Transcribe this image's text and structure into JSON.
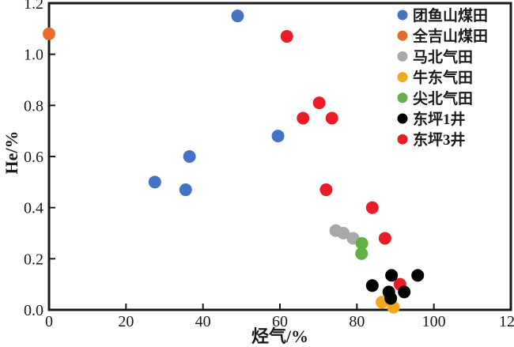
{
  "figure": {
    "background": "#ffffff",
    "frame_color": "#1a1a1a"
  },
  "chart_data": {
    "type": "scatter",
    "title": "",
    "xlabel": "烃气/%",
    "ylabel": "He/%",
    "xlim": [
      0,
      120
    ],
    "ylim": [
      0,
      1.2
    ],
    "x_tick_labels": [
      "0",
      "20",
      "40",
      "60",
      "80",
      "100",
      "120"
    ],
    "x_tick_values": [
      0,
      20,
      40,
      60,
      80,
      100,
      120
    ],
    "y_tick_labels": [
      "0.0",
      "0.2",
      "0.4",
      "0.6",
      "0.8",
      "1.0",
      "1.2"
    ],
    "y_tick_values": [
      0,
      0.2,
      0.4,
      0.6,
      0.8,
      1.0,
      1.2
    ],
    "grid": false,
    "legend_position": "top-right-inside",
    "series": [
      {
        "name": "团鱼山煤田",
        "color": "#4472c4",
        "points": [
          [
            49,
            1.15
          ],
          [
            59.5,
            0.68
          ],
          [
            36.5,
            0.6
          ],
          [
            27.5,
            0.5
          ],
          [
            35.5,
            0.47
          ]
        ]
      },
      {
        "name": "全吉山煤田",
        "color": "#e66c2c",
        "points": [
          [
            0,
            1.08
          ]
        ]
      },
      {
        "name": "马北气田",
        "color": "#a8a8a8",
        "points": [
          [
            74.5,
            0.31
          ],
          [
            76.5,
            0.3
          ],
          [
            79,
            0.28
          ]
        ]
      },
      {
        "name": "牛东气田",
        "color": "#f2a71f",
        "points": [
          [
            86.5,
            0.03
          ],
          [
            89.5,
            0.01
          ]
        ]
      },
      {
        "name": "尖北气田",
        "color": "#64b045",
        "points": [
          [
            81.3,
            0.26
          ],
          [
            81.2,
            0.22
          ]
        ]
      },
      {
        "name": "东坪1井",
        "color": "#000000",
        "points": [
          [
            84,
            0.095
          ],
          [
            89,
            0.135
          ],
          [
            95.8,
            0.135
          ],
          [
            88.3,
            0.07
          ],
          [
            92.3,
            0.07
          ],
          [
            88.8,
            0.045
          ]
        ]
      },
      {
        "name": "东坪3井",
        "color": "#e91d25",
        "points": [
          [
            61.8,
            1.07
          ],
          [
            70.2,
            0.81
          ],
          [
            66,
            0.75
          ],
          [
            73.5,
            0.75
          ],
          [
            72,
            0.47
          ],
          [
            84,
            0.4
          ],
          [
            87.3,
            0.28
          ],
          [
            91.2,
            0.1
          ]
        ]
      }
    ],
    "draw_order": [
      0,
      1,
      2,
      3,
      4,
      6,
      5
    ]
  }
}
